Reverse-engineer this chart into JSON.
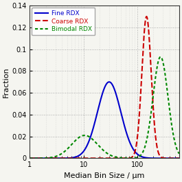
{
  "title": "",
  "xlabel": "Median Bin Size / μm",
  "ylabel": "Fraction",
  "xlim_log": [
    1,
    600
  ],
  "ylim": [
    0,
    0.14
  ],
  "yticks": [
    0,
    0.02,
    0.04,
    0.06,
    0.08,
    0.1,
    0.12,
    0.14
  ],
  "xtick_positions": [
    1,
    10,
    100
  ],
  "xtick_labels": [
    "1",
    "10",
    "100"
  ],
  "grid": true,
  "fine_rdx": {
    "label": "Fine RDX",
    "color": "#0000cc",
    "linestyle": "solid",
    "lw": 1.5,
    "mu_log": 3.4,
    "sigma_log": 0.5,
    "scale": 0.07
  },
  "coarse_rdx": {
    "label": "Coarse RDX",
    "color": "#cc0000",
    "linestyle": "dashed",
    "lw": 1.5,
    "mu_log": 5.0,
    "sigma_log": 0.2,
    "scale": 0.13
  },
  "bimodal_rdx": {
    "label": "Bimodal RDX",
    "color": "#008800",
    "linestyle": "dotted",
    "lw": 1.5,
    "peaks": [
      {
        "mu_log": 2.35,
        "sigma_log": 0.55,
        "scale": 0.021
      },
      {
        "mu_log": 5.6,
        "sigma_log": 0.32,
        "scale": 0.093
      }
    ]
  },
  "legend_loc": "upper left",
  "background_color": "#f5f5f0"
}
